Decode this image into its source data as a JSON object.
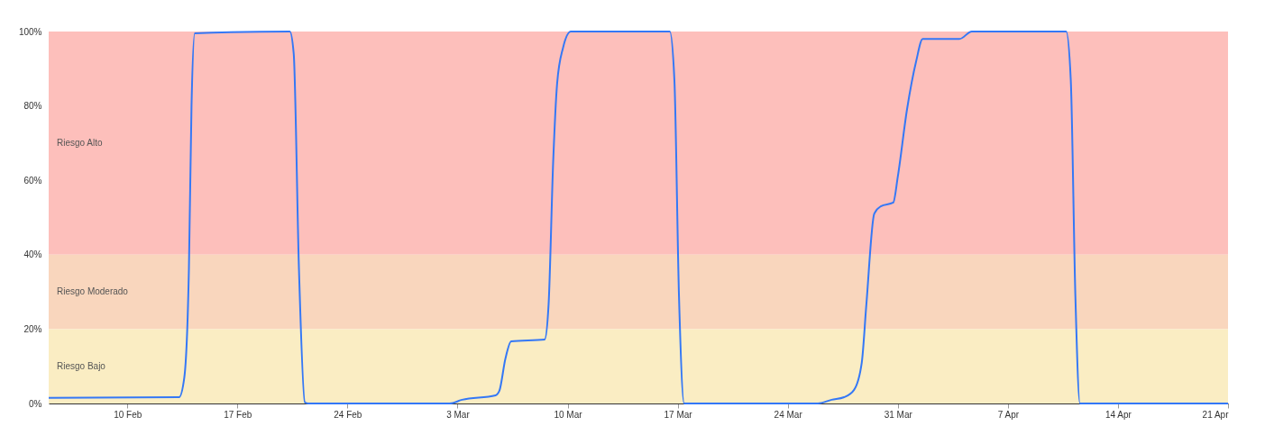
{
  "chart_data": {
    "type": "line",
    "x": [
      "--02-05T00:00",
      "--02-13T07:00",
      "--02-13T15:00",
      "--02-13T22:00",
      "--02-14T02:00",
      "--02-14T07:00",
      "--02-20T08:00",
      "--02-20T14:00",
      "--02-20T22:00",
      "--02-21T07:00",
      "--02-21T12:00",
      "--03-02T12:00",
      "--03-03T07:00",
      "--03-05T10:00",
      "--03-05T16:00",
      "--03-06T01:00",
      "--03-06T10:00",
      "--03-08T13:00",
      "--03-08T19:00",
      "--03-09T02:00",
      "--03-09T08:00",
      "--03-09T17:00",
      "--03-10T05:00",
      "--03-16T12:00",
      "--03-16T19:00",
      "--03-17T02:00",
      "--03-17T10:00",
      "--03-25T22:00",
      "--03-26T19:00",
      "--03-27T14:00",
      "--03-28T05:00",
      "--03-28T17:00",
      "--03-29T00:00",
      "--03-29T12:00",
      "--03-29T22:00",
      "--03-30T17:00",
      "--03-31T00:00",
      "--03-31T14:00",
      "--04-01T04:00",
      "--04-01T14:00",
      "--04-03T22:00",
      "--04-04T17:00",
      "--04-10T17:00",
      "--04-11T00:00",
      "--04-11T07:00",
      "--04-11T14:00",
      "--04-21T00:00"
    ],
    "series": [
      {
        "color": "#3478f6",
        "values": [
          1.5,
          1.7,
          7,
          36,
          80,
          99.5,
          100,
          94,
          36,
          0.3,
          0,
          0,
          1,
          2.2,
          3.5,
          12,
          16.7,
          17.2,
          26.6,
          65,
          86,
          95.6,
          100,
          100,
          87,
          29,
          0,
          0,
          1,
          1.7,
          3.6,
          11,
          26.6,
          51,
          53,
          54,
          61,
          79,
          92,
          98,
          98,
          100,
          100,
          87,
          29,
          0,
          0
        ]
      }
    ],
    "xlim": [
      "--02-05",
      "--04-21"
    ],
    "xticks": [
      {
        "value": "--02-10",
        "label": "10 Feb"
      },
      {
        "value": "--02-17",
        "label": "17 Feb"
      },
      {
        "value": "--02-24",
        "label": "24 Feb"
      },
      {
        "value": "--03-03",
        "label": "3 Mar"
      },
      {
        "value": "--03-10",
        "label": "10 Mar"
      },
      {
        "value": "--03-17",
        "label": "17 Mar"
      },
      {
        "value": "--03-24",
        "label": "24 Mar"
      },
      {
        "value": "--03-31",
        "label": "31 Mar"
      },
      {
        "value": "--04-07",
        "label": "7 Apr"
      },
      {
        "value": "--04-14",
        "label": "14 Apr"
      },
      {
        "value": "--04-21",
        "label": "21 Apr"
      }
    ],
    "ylim": [
      0,
      100
    ],
    "yticks": [
      {
        "value": 0,
        "label": "0%"
      },
      {
        "value": 20,
        "label": "20%"
      },
      {
        "value": 40,
        "label": "40%"
      },
      {
        "value": 60,
        "label": "60%"
      },
      {
        "value": 80,
        "label": "80%"
      },
      {
        "value": 100,
        "label": "100%"
      }
    ],
    "bands": [
      {
        "axis": "y",
        "from": 40,
        "to": 100,
        "label": "Riesgo Alto",
        "color": "#fdbfbb"
      },
      {
        "axis": "y",
        "from": 20,
        "to": 40,
        "label": "Riesgo Moderado",
        "color": "#f9d6bd"
      },
      {
        "axis": "y",
        "from": 0,
        "to": 20,
        "label": "Riesgo Bajo",
        "color": "#faedc3"
      }
    ],
    "grid": false,
    "marker": "none",
    "line_style": "solid"
  }
}
